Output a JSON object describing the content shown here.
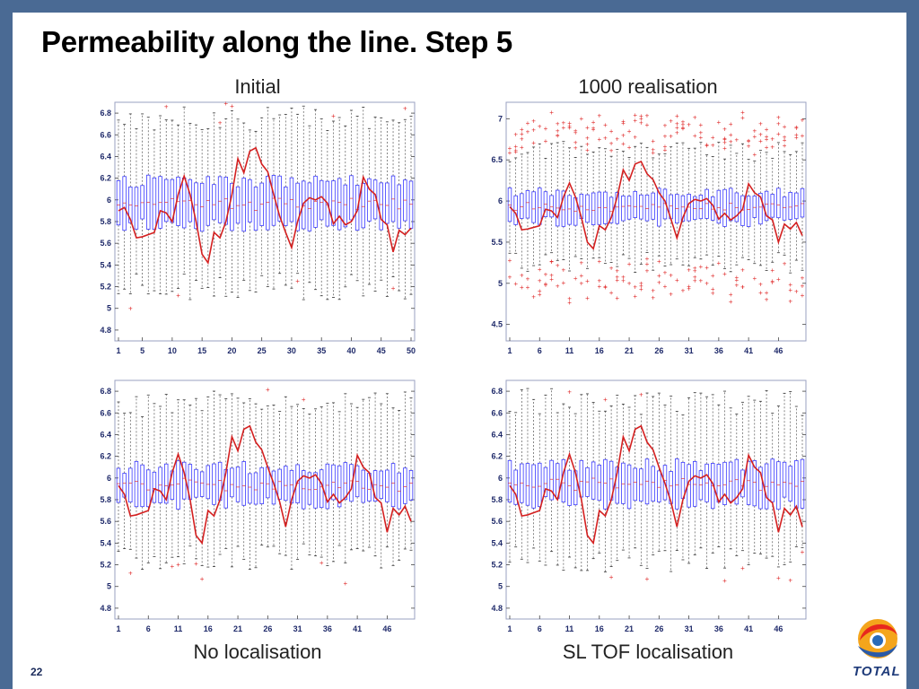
{
  "title": "Permeability along the line. Step 5",
  "slide_number": "22",
  "logo_text": "TOTAL",
  "colors": {
    "frame": "#4a6a94",
    "median_line": "#d42020",
    "box": "#3a3aff",
    "outlier": "#e03030"
  },
  "chart_data": [
    {
      "id": "initial",
      "type": "boxplot",
      "label": "Initial",
      "n_positions": 50,
      "ylim": [
        4.7,
        6.9
      ],
      "yticks": [
        4.8,
        5,
        5.2,
        5.4,
        5.6,
        5.8,
        6,
        6.2,
        6.4,
        6.6,
        6.8
      ],
      "xticks": [
        1,
        5,
        10,
        15,
        20,
        25,
        30,
        35,
        40,
        45,
        50
      ],
      "box_q1": 5.77,
      "box_q3": 6.17,
      "whisker_low": 5.2,
      "whisker_high": 6.75,
      "red_line": [
        5.9,
        5.93,
        5.82,
        5.65,
        5.66,
        5.68,
        5.7,
        5.9,
        5.88,
        5.8,
        6.05,
        6.22,
        6.05,
        5.8,
        5.5,
        5.42,
        5.7,
        5.65,
        5.8,
        6.05,
        6.38,
        6.25,
        6.45,
        6.48,
        6.33,
        6.26,
        6.05,
        5.85,
        5.7,
        5.56,
        5.8,
        5.97,
        6.02,
        6.0,
        6.03,
        5.97,
        5.78,
        5.85,
        5.77,
        5.8,
        5.9,
        6.21,
        6.1,
        6.05,
        5.82,
        5.77,
        5.52,
        5.72,
        5.68,
        5.74
      ]
    },
    {
      "id": "realisation",
      "type": "boxplot",
      "label": "1000 realisation",
      "n_positions": 50,
      "ylim": [
        4.3,
        7.2
      ],
      "yticks": [
        4.5,
        5,
        5.5,
        6,
        6.5,
        7
      ],
      "xticks": [
        1,
        6,
        11,
        16,
        21,
        26,
        31,
        36,
        41,
        46
      ],
      "box_q1": 5.75,
      "box_q3": 6.1,
      "whisker_low": 5.25,
      "whisker_high": 6.6,
      "red_line": [
        5.93,
        5.85,
        5.65,
        5.66,
        5.68,
        5.7,
        5.9,
        5.88,
        5.8,
        6.05,
        6.22,
        6.05,
        5.8,
        5.5,
        5.42,
        5.7,
        5.65,
        5.8,
        6.05,
        6.38,
        6.25,
        6.45,
        6.48,
        6.33,
        6.26,
        6.1,
        6.0,
        5.78,
        5.55,
        5.8,
        5.97,
        6.02,
        6.0,
        6.03,
        5.95,
        5.78,
        5.85,
        5.77,
        5.82,
        5.9,
        6.21,
        6.1,
        6.05,
        5.82,
        5.77,
        5.5,
        5.72,
        5.66,
        5.74,
        5.58
      ]
    },
    {
      "id": "no_localisation",
      "type": "boxplot",
      "label": "No localisation",
      "n_positions": 50,
      "ylim": [
        4.7,
        6.9
      ],
      "yticks": [
        4.8,
        5,
        5.2,
        5.4,
        5.6,
        5.8,
        6,
        6.2,
        6.4,
        6.6,
        6.8
      ],
      "xticks": [
        1,
        6,
        11,
        16,
        21,
        26,
        31,
        36,
        41,
        46
      ],
      "box_q1": 5.77,
      "box_q3": 6.1,
      "whisker_low": 5.28,
      "whisker_high": 6.68,
      "red_line": [
        5.93,
        5.85,
        5.65,
        5.66,
        5.68,
        5.7,
        5.9,
        5.88,
        5.8,
        6.05,
        6.22,
        6.05,
        5.8,
        5.47,
        5.4,
        5.7,
        5.65,
        5.8,
        6.05,
        6.38,
        6.25,
        6.45,
        6.48,
        6.33,
        6.26,
        6.1,
        5.95,
        5.78,
        5.55,
        5.8,
        5.97,
        6.02,
        6.0,
        6.03,
        5.95,
        5.78,
        5.85,
        5.77,
        5.82,
        5.9,
        6.21,
        6.1,
        6.05,
        5.82,
        5.77,
        5.5,
        5.72,
        5.66,
        5.74,
        5.6
      ]
    },
    {
      "id": "sl_tof",
      "type": "boxplot",
      "label": "SL TOF localisation",
      "n_positions": 50,
      "ylim": [
        4.7,
        6.9
      ],
      "yticks": [
        4.8,
        5,
        5.2,
        5.4,
        5.6,
        5.8,
        6,
        6.2,
        6.4,
        6.6,
        6.8
      ],
      "xticks": [
        1,
        6,
        11,
        16,
        21,
        26,
        31,
        36,
        41,
        46
      ],
      "box_q1": 5.77,
      "box_q3": 6.12,
      "whisker_low": 5.25,
      "whisker_high": 6.7,
      "red_line": [
        5.93,
        5.85,
        5.65,
        5.66,
        5.68,
        5.7,
        5.9,
        5.88,
        5.8,
        6.05,
        6.22,
        6.05,
        5.8,
        5.47,
        5.4,
        5.7,
        5.65,
        5.8,
        6.05,
        6.38,
        6.25,
        6.45,
        6.48,
        6.33,
        6.26,
        6.1,
        5.95,
        5.78,
        5.55,
        5.8,
        5.97,
        6.02,
        6.0,
        6.03,
        5.95,
        5.78,
        5.85,
        5.77,
        5.82,
        5.9,
        6.21,
        6.1,
        6.05,
        5.82,
        5.77,
        5.5,
        5.72,
        5.66,
        5.74,
        5.55
      ]
    }
  ]
}
